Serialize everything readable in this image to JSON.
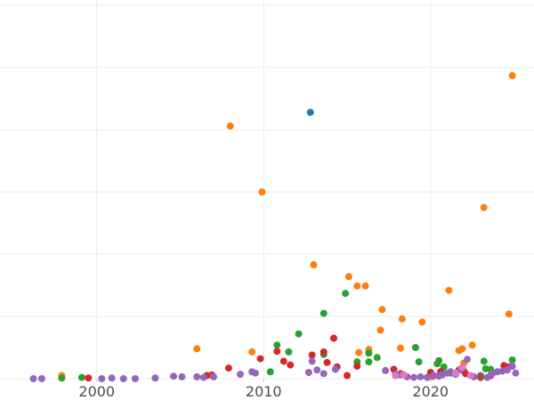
{
  "chart_data": {
    "type": "scatter",
    "title": "",
    "xlabel": "",
    "ylabel": "",
    "xlim": [
      1994.2,
      2026.2
    ],
    "ylim": [
      0,
      600
    ],
    "x_ticks": [
      {
        "value": 2000,
        "label": "2000"
      },
      {
        "value": 2010,
        "label": "2010"
      },
      {
        "value": 2020,
        "label": "2020"
      }
    ],
    "y_ticks": [
      0,
      100,
      200,
      300,
      400,
      500,
      600
    ],
    "grid": true,
    "legend": "none",
    "series": [
      {
        "color": "#1f77b4",
        "points": [
          [
            2012.8,
            428
          ]
        ]
      },
      {
        "color": "#ff7f0e",
        "points": [
          [
            1997.9,
            5
          ],
          [
            2006.0,
            48
          ],
          [
            2008.0,
            406
          ],
          [
            2009.3,
            43
          ],
          [
            2009.9,
            300
          ],
          [
            2013.0,
            183
          ],
          [
            2015.1,
            164
          ],
          [
            2015.6,
            149
          ],
          [
            2015.7,
            42
          ],
          [
            2016.1,
            149
          ],
          [
            2016.3,
            47
          ],
          [
            2017.0,
            78
          ],
          [
            2017.1,
            111
          ],
          [
            2018.2,
            49
          ],
          [
            2018.3,
            96
          ],
          [
            2019.5,
            91
          ],
          [
            2020.1,
            3
          ],
          [
            2021.1,
            142
          ],
          [
            2021.7,
            45
          ],
          [
            2021.9,
            48
          ],
          [
            2022.0,
            25
          ],
          [
            2022.5,
            54
          ],
          [
            2023.2,
            275
          ],
          [
            2024.7,
            104
          ],
          [
            2024.9,
            487
          ]
        ]
      },
      {
        "color": "#2ca02c",
        "points": [
          [
            1997.9,
            1
          ],
          [
            1999.1,
            2
          ],
          [
            2010.4,
            11
          ],
          [
            2010.8,
            54
          ],
          [
            2011.5,
            43
          ],
          [
            2012.1,
            72
          ],
          [
            2013.6,
            105
          ],
          [
            2013.6,
            39
          ],
          [
            2014.9,
            137
          ],
          [
            2015.6,
            27
          ],
          [
            2016.3,
            27
          ],
          [
            2016.3,
            41
          ],
          [
            2016.8,
            34
          ],
          [
            2019.1,
            50
          ],
          [
            2019.3,
            27
          ],
          [
            2020.4,
            24
          ],
          [
            2020.5,
            29
          ],
          [
            2020.8,
            19
          ],
          [
            2021.2,
            9
          ],
          [
            2022.0,
            12
          ],
          [
            2023.2,
            28
          ],
          [
            2023.3,
            16
          ],
          [
            2023.6,
            15
          ],
          [
            2024.9,
            30
          ]
        ]
      },
      {
        "color": "#d62728",
        "points": [
          [
            1999.5,
            1
          ],
          [
            2006.6,
            5
          ],
          [
            2006.9,
            6
          ],
          [
            2007.9,
            17
          ],
          [
            2009.8,
            32
          ],
          [
            2010.8,
            44
          ],
          [
            2011.2,
            28
          ],
          [
            2011.6,
            22
          ],
          [
            2012.9,
            38
          ],
          [
            2013.6,
            43
          ],
          [
            2013.8,
            26
          ],
          [
            2014.2,
            65
          ],
          [
            2014.4,
            19
          ],
          [
            2015.0,
            5
          ],
          [
            2015.6,
            20
          ],
          [
            2017.8,
            15
          ],
          [
            2018.2,
            8
          ],
          [
            2020.0,
            10
          ],
          [
            2020.6,
            11
          ],
          [
            2021.7,
            14
          ],
          [
            2022.1,
            8
          ],
          [
            2023.0,
            2
          ],
          [
            2023.6,
            5
          ],
          [
            2024.4,
            21
          ],
          [
            2024.7,
            19
          ]
        ]
      },
      {
        "color": "#9467bd",
        "points": [
          [
            1996.2,
            0
          ],
          [
            1996.7,
            0
          ],
          [
            2000.3,
            0
          ],
          [
            2000.9,
            1
          ],
          [
            2001.6,
            0
          ],
          [
            2002.3,
            0
          ],
          [
            2003.5,
            1
          ],
          [
            2004.6,
            4
          ],
          [
            2005.1,
            3
          ],
          [
            2006.0,
            3
          ],
          [
            2006.4,
            2
          ],
          [
            2007.0,
            3
          ],
          [
            2008.6,
            7
          ],
          [
            2009.3,
            11
          ],
          [
            2009.5,
            9
          ],
          [
            2012.7,
            10
          ],
          [
            2012.9,
            28
          ],
          [
            2013.2,
            14
          ],
          [
            2013.6,
            8
          ],
          [
            2014.3,
            15
          ],
          [
            2017.3,
            13
          ],
          [
            2017.9,
            7
          ],
          [
            2018.2,
            6
          ],
          [
            2018.6,
            3
          ],
          [
            2019.0,
            2
          ],
          [
            2019.4,
            3
          ],
          [
            2019.8,
            2
          ],
          [
            2020.2,
            5
          ],
          [
            2020.5,
            4
          ],
          [
            2020.7,
            6
          ],
          [
            2021.0,
            9
          ],
          [
            2021.2,
            11
          ],
          [
            2021.5,
            7
          ],
          [
            2021.8,
            15
          ],
          [
            2022.2,
            31
          ],
          [
            2022.6,
            3
          ],
          [
            2023.0,
            5
          ],
          [
            2023.4,
            2
          ],
          [
            2023.7,
            8
          ],
          [
            2024.0,
            11
          ],
          [
            2024.3,
            12
          ],
          [
            2024.6,
            14
          ],
          [
            2024.9,
            20
          ],
          [
            2025.1,
            9
          ]
        ]
      },
      {
        "color": "#e377c2",
        "points": [
          [
            2017.9,
            5
          ],
          [
            2018.4,
            6
          ],
          [
            2021.5,
            9
          ],
          [
            2021.9,
            18
          ],
          [
            2022.4,
            5
          ]
        ]
      },
      {
        "color": "#8c564b",
        "points": [
          [
            2023.0,
            4
          ]
        ]
      }
    ]
  }
}
